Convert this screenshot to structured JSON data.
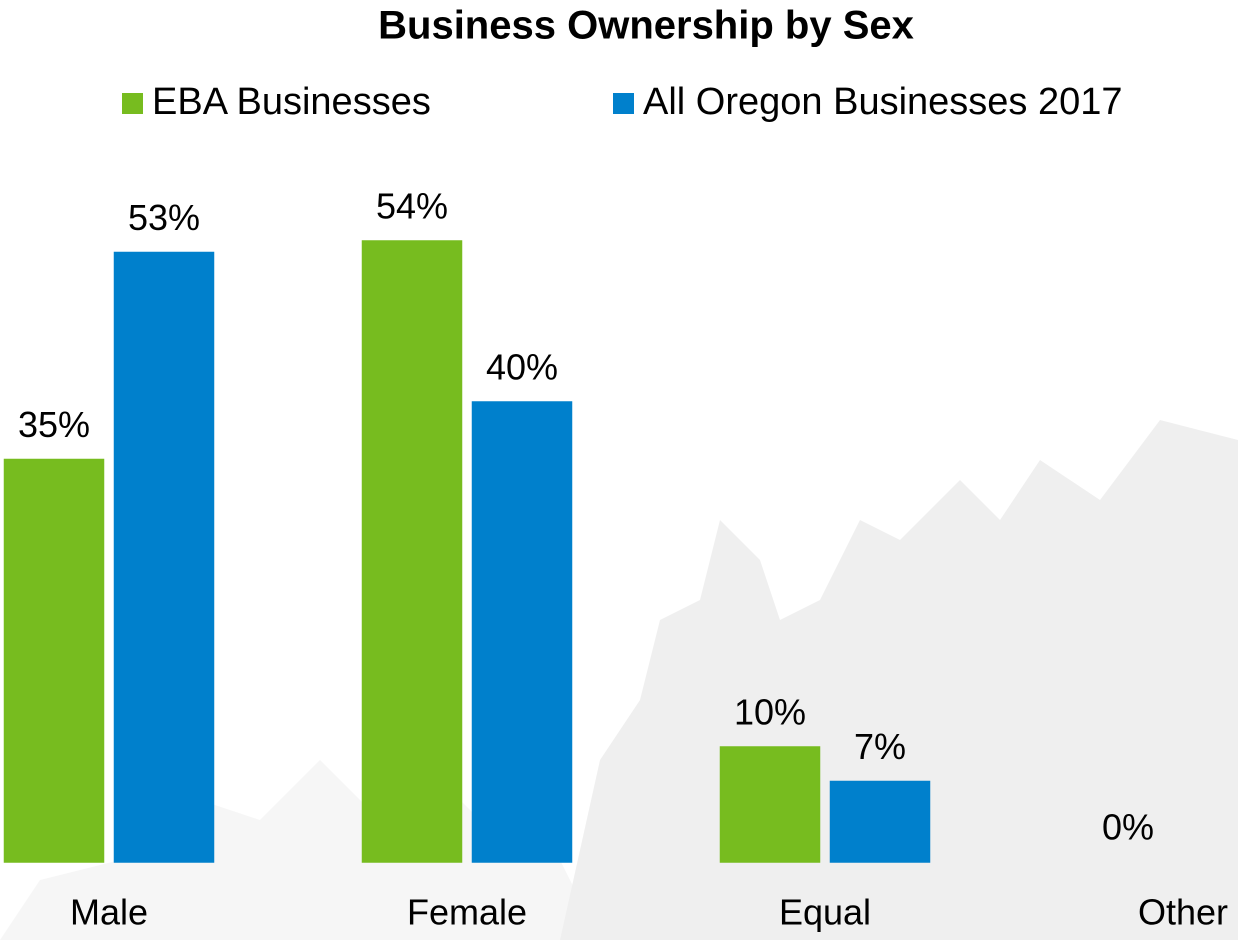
{
  "chart_data": {
    "type": "bar",
    "title": "Business Ownership by Sex",
    "categories": [
      "Male",
      "Female",
      "Equal",
      "Other"
    ],
    "series": [
      {
        "name": "EBA Businesses",
        "color": "#77bc1f",
        "values": [
          35,
          54,
          10,
          0
        ],
        "value_labels": [
          "35%",
          "54%",
          "10%",
          "0%"
        ]
      },
      {
        "name": "All Oregon Businesses 2017",
        "color": "#0080cc",
        "values": [
          53,
          40,
          7,
          null
        ],
        "value_labels": [
          "53%",
          "40%",
          "7%",
          null
        ]
      }
    ],
    "legend": "top"
  }
}
